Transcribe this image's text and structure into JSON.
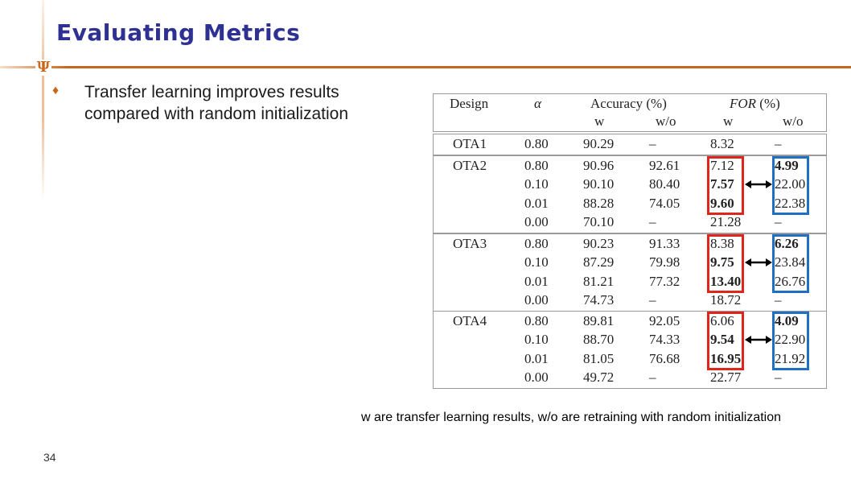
{
  "slide": {
    "title": "Evaluating Metrics",
    "logo_glyph": "Ψ",
    "bullet_icon": "♦",
    "bullet": "Transfer learning improves results compared with random initialization",
    "caption": "w are transfer learning results, w/o are retraining with random initialization",
    "page_number": "34"
  },
  "table": {
    "headers": {
      "design": "Design",
      "alpha": "α",
      "accuracy": "Accuracy (%)",
      "for_label": "FOR",
      "for_unit": "(%)",
      "w": "w",
      "wo": "w/o"
    },
    "groups": [
      {
        "design": "OTA1",
        "rows": [
          {
            "alpha": "0.80",
            "acc_w": "90.29",
            "acc_wo": "–",
            "for_w": "8.32",
            "for_wo": "–"
          }
        ]
      },
      {
        "design": "OTA2",
        "rows": [
          {
            "alpha": "0.80",
            "acc_w": "90.96",
            "acc_wo": "92.61",
            "for_w": "7.12",
            "for_wo": "4.99"
          },
          {
            "alpha": "0.10",
            "acc_w": "90.10",
            "acc_wo": "80.40",
            "for_w": "7.57",
            "for_wo": "22.00"
          },
          {
            "alpha": "0.01",
            "acc_w": "88.28",
            "acc_wo": "74.05",
            "for_w": "9.60",
            "for_wo": "22.38"
          },
          {
            "alpha": "0.00",
            "acc_w": "70.10",
            "acc_wo": "–",
            "for_w": "21.28",
            "for_wo": "–"
          }
        ]
      },
      {
        "design": "OTA3",
        "rows": [
          {
            "alpha": "0.80",
            "acc_w": "90.23",
            "acc_wo": "91.33",
            "for_w": "8.38",
            "for_wo": "6.26"
          },
          {
            "alpha": "0.10",
            "acc_w": "87.29",
            "acc_wo": "79.98",
            "for_w": "9.75",
            "for_wo": "23.84"
          },
          {
            "alpha": "0.01",
            "acc_w": "81.21",
            "acc_wo": "77.32",
            "for_w": "13.40",
            "for_wo": "26.76"
          },
          {
            "alpha": "0.00",
            "acc_w": "74.73",
            "acc_wo": "–",
            "for_w": "18.72",
            "for_wo": "–"
          }
        ]
      },
      {
        "design": "OTA4",
        "rows": [
          {
            "alpha": "0.80",
            "acc_w": "89.81",
            "acc_wo": "92.05",
            "for_w": "6.06",
            "for_wo": "4.09"
          },
          {
            "alpha": "0.10",
            "acc_w": "88.70",
            "acc_wo": "74.33",
            "for_w": "9.54",
            "for_wo": "22.90"
          },
          {
            "alpha": "0.01",
            "acc_w": "81.05",
            "acc_wo": "76.68",
            "for_w": "16.95",
            "for_wo": "21.92"
          },
          {
            "alpha": "0.00",
            "acc_w": "49.72",
            "acc_wo": "–",
            "for_w": "22.77",
            "for_wo": "–"
          }
        ]
      }
    ],
    "bold_cells": [
      "1.1.for_w",
      "1.2.for_w",
      "1.0.for_wo",
      "2.1.for_w",
      "2.2.for_w",
      "2.0.for_wo",
      "3.1.for_w",
      "3.2.for_w",
      "3.0.for_wo"
    ],
    "colors": {
      "w_box": "#e0261c",
      "wo_box": "#1f6fc4",
      "arrow": "#000000",
      "border": "#9a9a9a"
    }
  }
}
